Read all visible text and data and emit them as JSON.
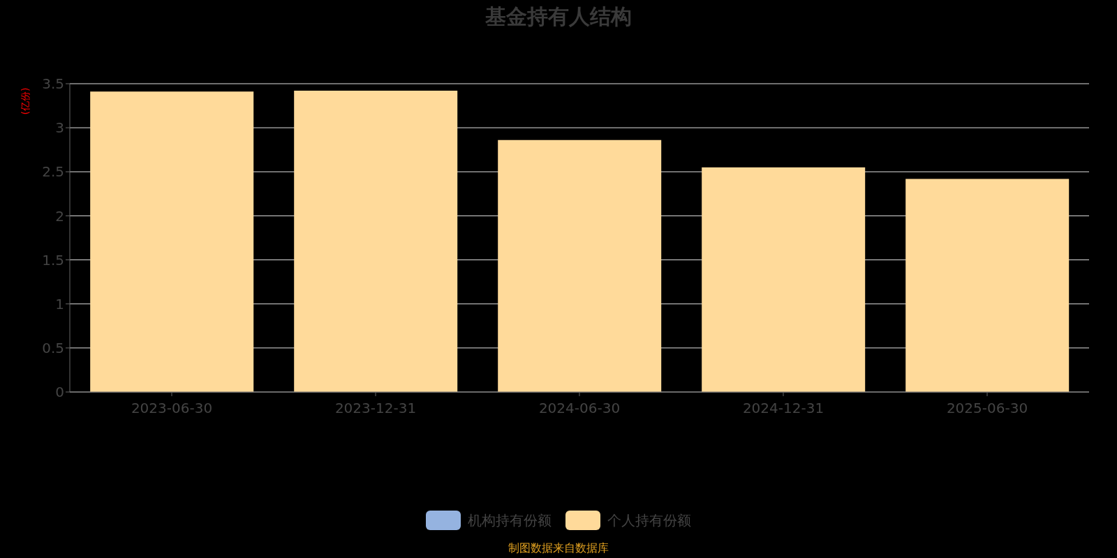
{
  "chart_data": {
    "type": "bar",
    "title": "基金持有人结构",
    "ylabel": "(亿份)",
    "categories": [
      "2023-06-30",
      "2023-12-31",
      "2024-06-30",
      "2024-12-31",
      "2025-06-30"
    ],
    "series": [
      {
        "name": "机构持有份额",
        "color": "#95b3e0",
        "values": [
          0,
          0,
          0,
          0,
          0
        ]
      },
      {
        "name": "个人持有份额",
        "color": "#ffda9a",
        "values": [
          3.41,
          3.42,
          2.86,
          2.55,
          2.42
        ]
      }
    ],
    "stacked": true,
    "ylim": [
      0,
      3.5
    ],
    "yticks": [
      0,
      0.5,
      1,
      1.5,
      2,
      2.5,
      3,
      3.5
    ],
    "grid": "y",
    "legend": "bottom",
    "annotations": [
      "制图数据来自数据库"
    ]
  }
}
